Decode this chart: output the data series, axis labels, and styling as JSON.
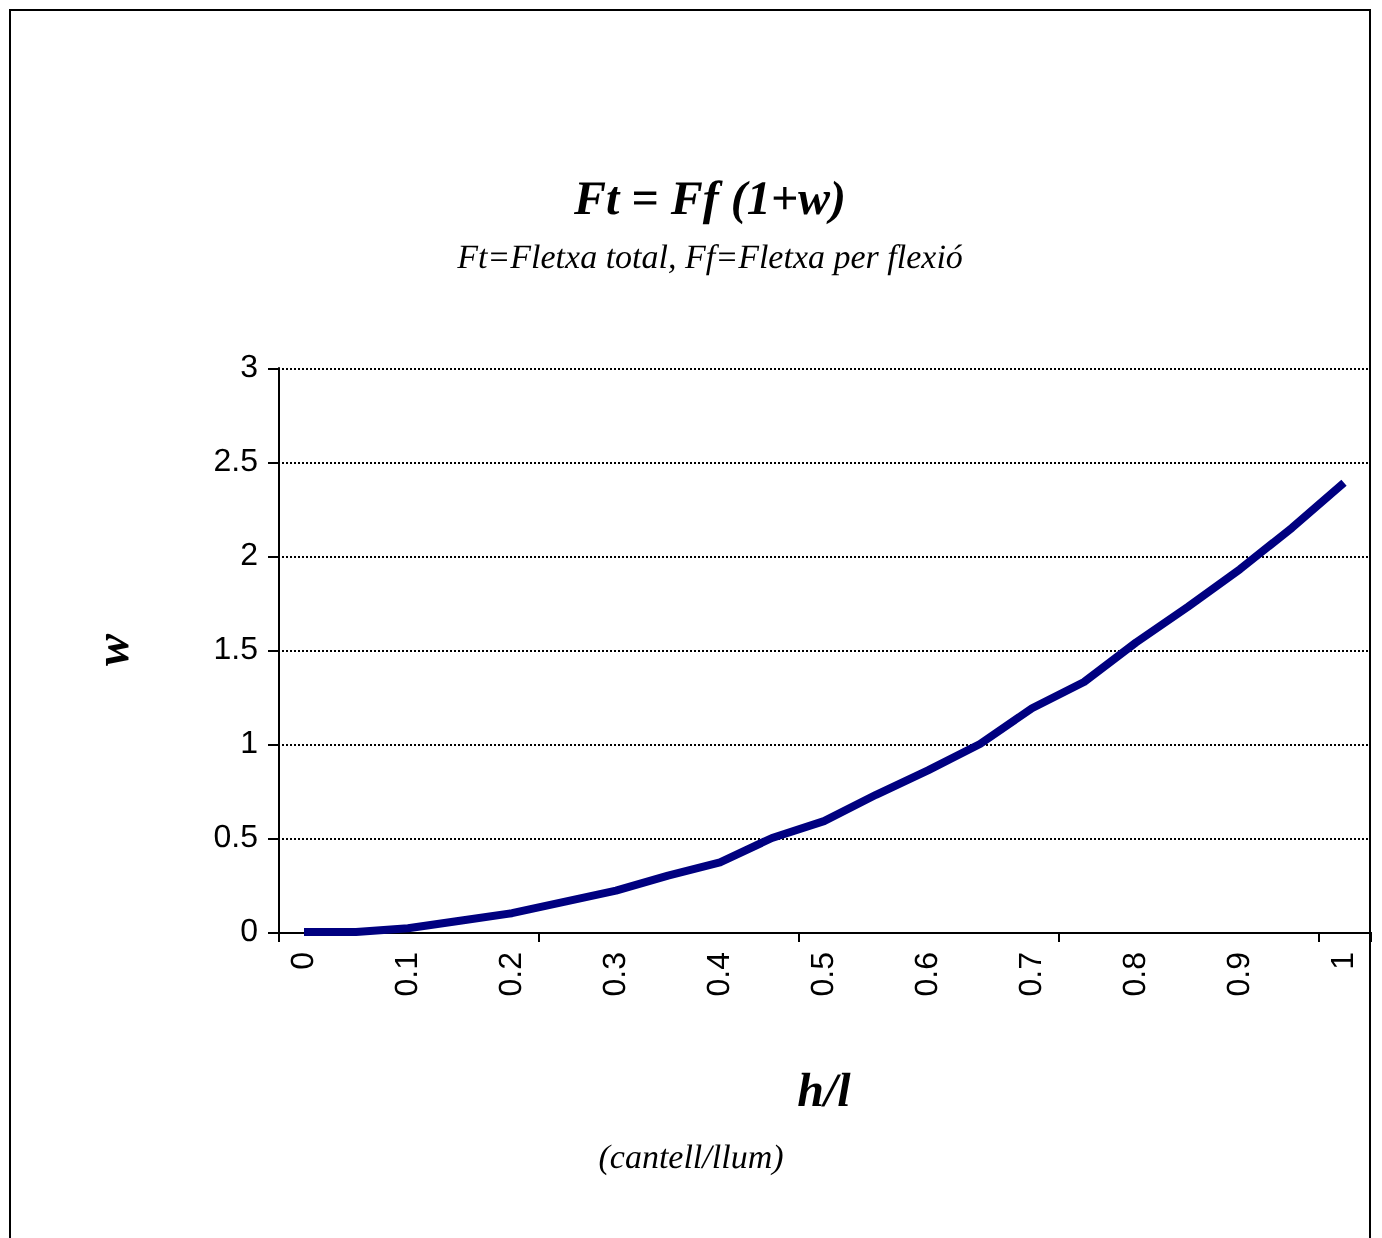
{
  "chart_data": {
    "type": "line",
    "title": "Ft = Ff (1+w)",
    "subtitle": "Ft=Fletxa total, Ff=Fletxa per flexió",
    "xlabel": "h/l",
    "annotations": [
      "(cantell/llum)"
    ],
    "ylabel": "w",
    "categories": [
      "0",
      null,
      "0.1",
      null,
      "0.2",
      null,
      "0.3",
      null,
      "0.4",
      null,
      "0.5",
      null,
      "0.6",
      null,
      "0.7",
      null,
      "0.8",
      null,
      "0.9",
      null,
      "1"
    ],
    "series": [
      {
        "color": "#000080",
        "values": [
          0,
          0,
          0.02,
          0.06,
          0.1,
          0.16,
          0.22,
          0.3,
          0.37,
          0.5,
          0.59,
          0.73,
          0.86,
          1.0,
          1.19,
          1.33,
          1.54,
          1.73,
          1.93,
          2.15,
          2.39
        ]
      }
    ],
    "ylim": [
      0,
      3
    ],
    "yticks": [
      0,
      0.5,
      1,
      1.5,
      2,
      2.5,
      3
    ],
    "grid": "y",
    "marker": "none",
    "line_style": "solid"
  }
}
